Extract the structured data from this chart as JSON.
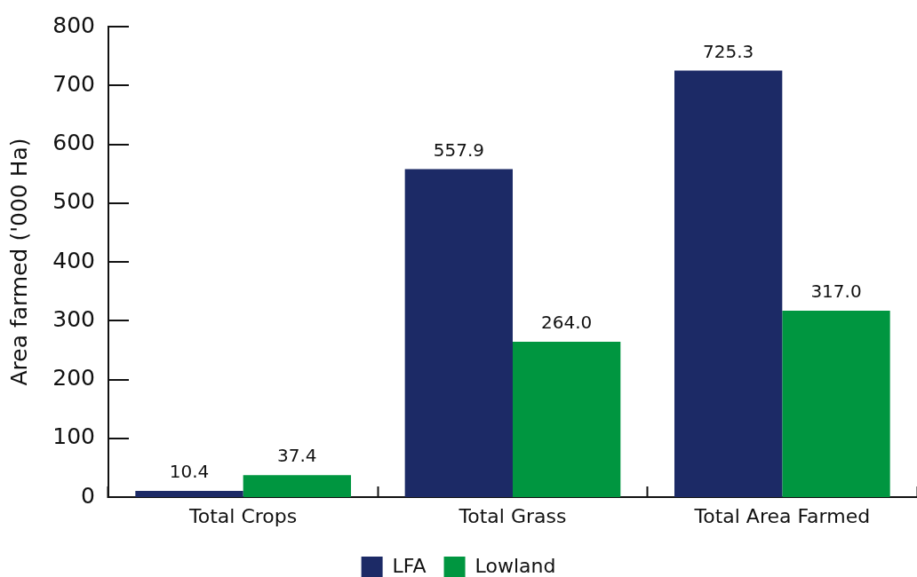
{
  "chart_data": {
    "type": "bar",
    "categories": [
      "Total Crops",
      "Total Grass",
      "Total Area Farmed"
    ],
    "ylabel": "Area farmed ('000 Ha)",
    "ylim": [
      0,
      800
    ],
    "yticks": [
      0,
      100,
      200,
      300,
      400,
      500,
      600,
      700,
      800
    ],
    "legend": "bottom",
    "series": [
      {
        "name": "LFA",
        "color": "#1c2a66",
        "values": [
          10.4,
          557.9,
          725.3
        ],
        "value_labels": [
          "10.4",
          "557.9",
          "725.3"
        ]
      },
      {
        "name": "Lowland",
        "color": "#009640",
        "values": [
          37.4,
          264.0,
          317.0
        ],
        "value_labels": [
          "37.4",
          "264.0",
          "317.0"
        ]
      }
    ]
  }
}
